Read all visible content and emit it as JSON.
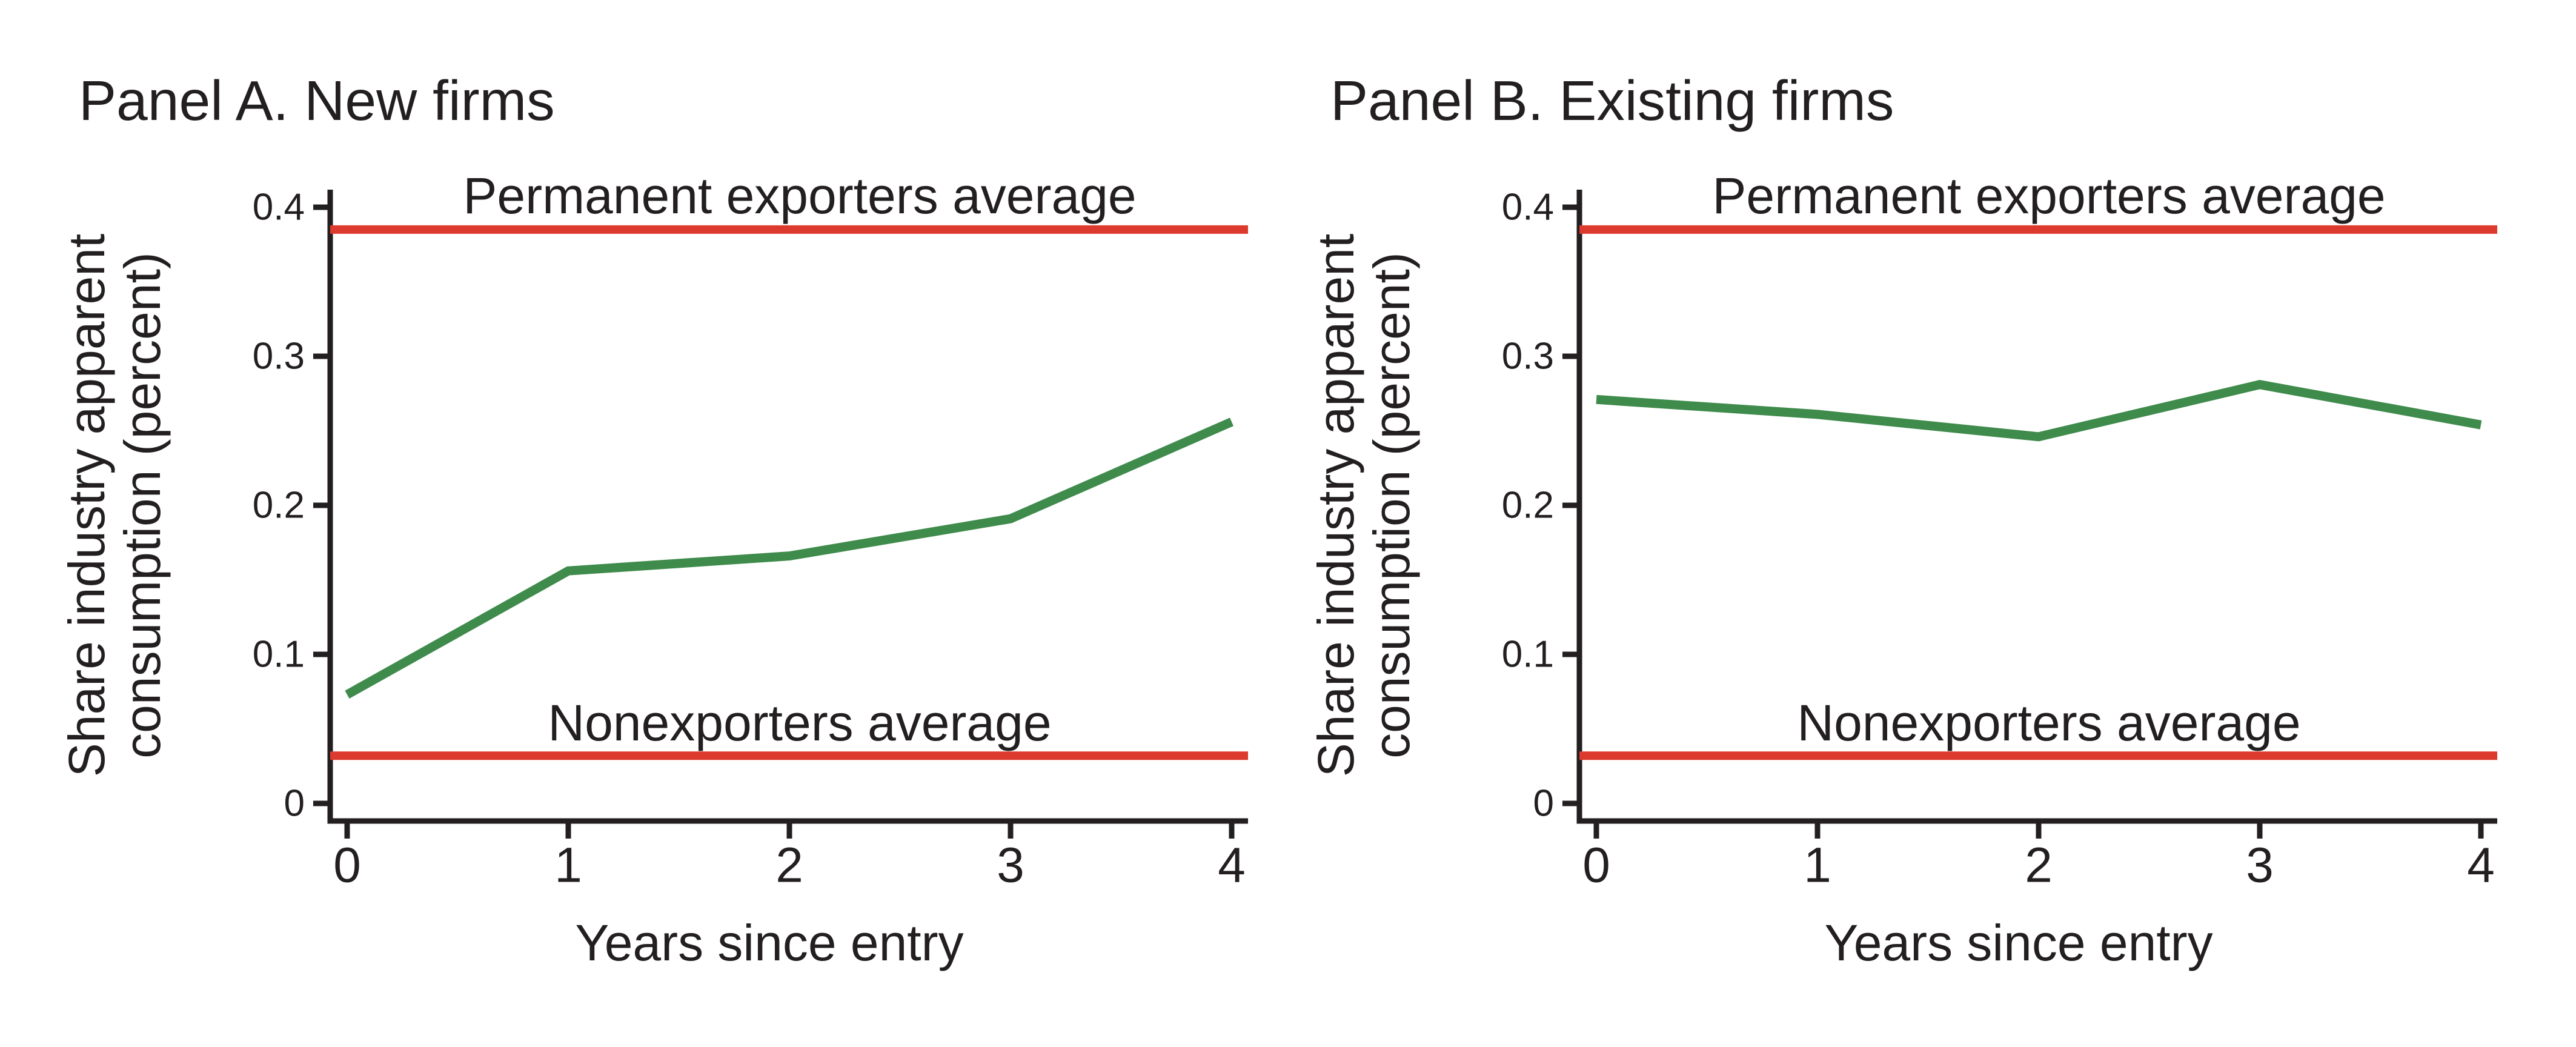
{
  "colors": {
    "text": "#231f20",
    "axis": "#231f20",
    "series_green": "#3f8b4c",
    "reference_red": "#dc3a2d",
    "background": "#ffffff"
  },
  "chart_data": [
    {
      "type": "line",
      "title": "Panel A. New firms",
      "xlabel": "Years since entry",
      "ylabel": "Share industry apparent consumption (percent)",
      "ylabel_lines": [
        "Share industry apparent",
        "consumption (percent)"
      ],
      "x": [
        0,
        1,
        2,
        3,
        4
      ],
      "xtick_labels": [
        "0",
        "1",
        "2",
        "3",
        "4"
      ],
      "yticks": [
        0,
        0.1,
        0.2,
        0.3,
        0.4
      ],
      "ytick_labels": [
        "0",
        "0.1",
        "0.2",
        "0.3",
        "0.4"
      ],
      "ylim": [
        0,
        0.41
      ],
      "grid": false,
      "legend": "none",
      "series": [
        {
          "name": "green-line",
          "color": "#3f8b4c",
          "values": [
            0.073,
            0.156,
            0.166,
            0.191,
            0.256
          ]
        }
      ],
      "hlines": [
        {
          "label": "Permanent exporters average",
          "value": 0.385,
          "color": "#dc3a2d"
        },
        {
          "label": "Nonexporters average",
          "value": 0.032,
          "color": "#dc3a2d"
        }
      ]
    },
    {
      "type": "line",
      "title": "Panel B. Existing firms",
      "xlabel": "Years since entry",
      "ylabel": "Share industry apparent consumption (percent)",
      "ylabel_lines": [
        "Share industry apparent",
        "consumption (percent)"
      ],
      "x": [
        0,
        1,
        2,
        3,
        4
      ],
      "xtick_labels": [
        "0",
        "1",
        "2",
        "3",
        "4"
      ],
      "yticks": [
        0,
        0.1,
        0.2,
        0.3,
        0.4
      ],
      "ytick_labels": [
        "0",
        "0.1",
        "0.2",
        "0.3",
        "0.4"
      ],
      "ylim": [
        0,
        0.41
      ],
      "grid": false,
      "legend": "none",
      "series": [
        {
          "name": "green-line",
          "color": "#3f8b4c",
          "values": [
            0.271,
            0.261,
            0.246,
            0.281,
            0.254
          ]
        }
      ],
      "hlines": [
        {
          "label": "Permanent exporters average",
          "value": 0.385,
          "color": "#dc3a2d"
        },
        {
          "label": "Nonexporters average",
          "value": 0.032,
          "color": "#dc3a2d"
        }
      ]
    }
  ]
}
